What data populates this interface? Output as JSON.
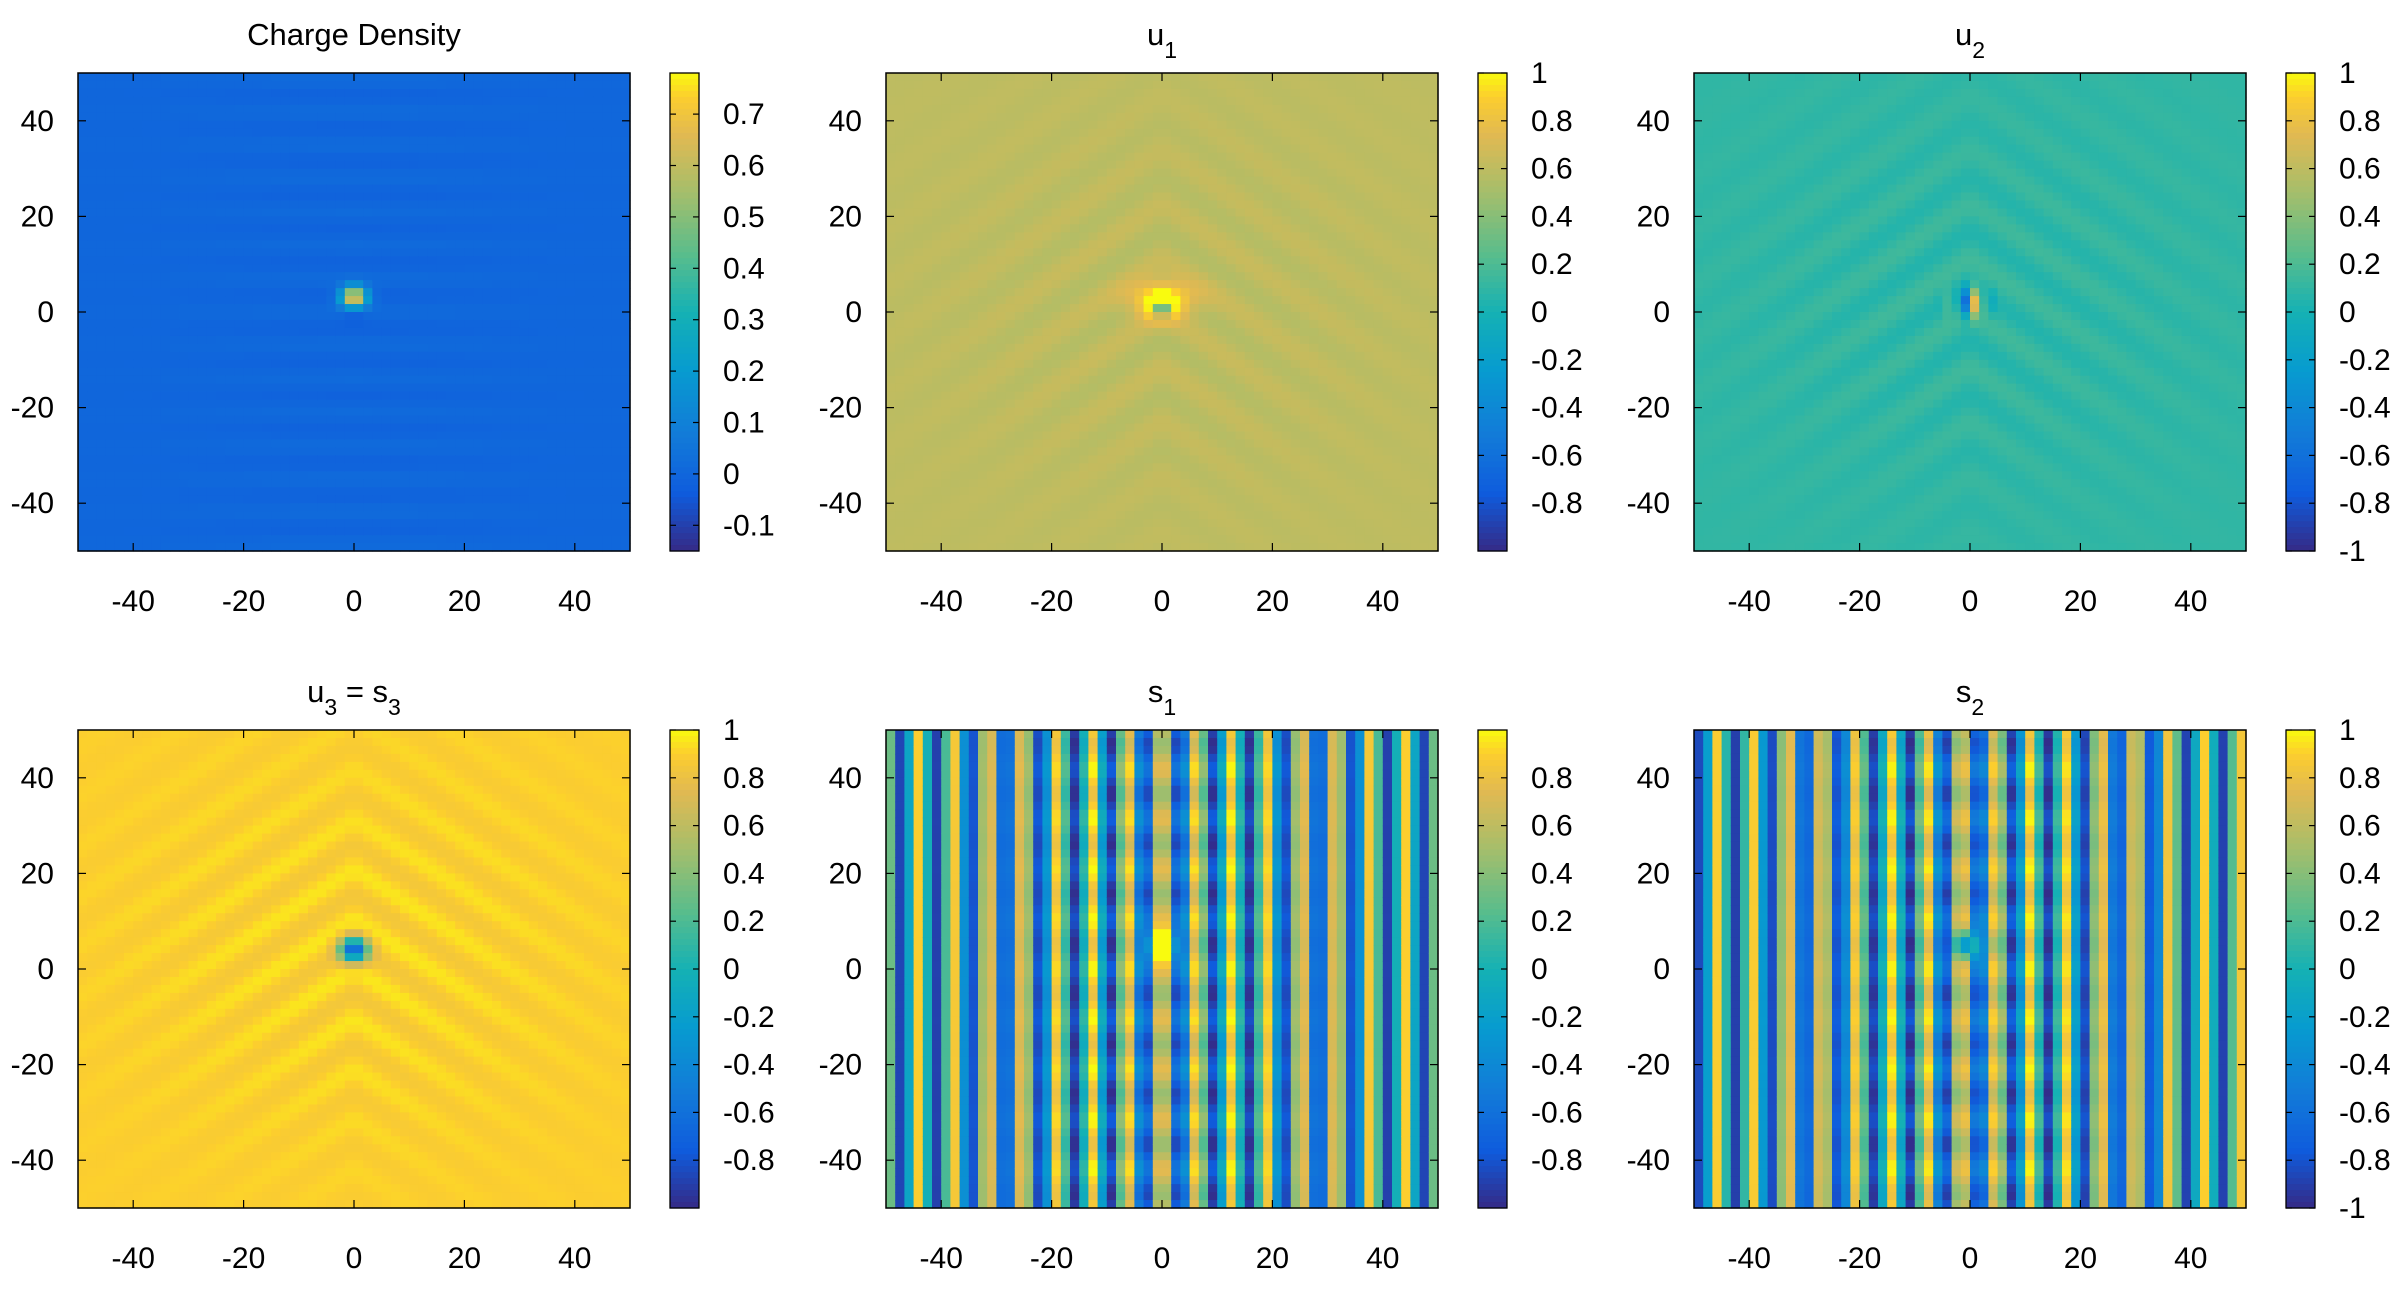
{
  "figure": {
    "panels": [
      {
        "title": "Charge Density",
        "sub": "",
        "suffix": ""
      },
      {
        "title": "u",
        "sub": "1",
        "suffix": ""
      },
      {
        "title": "u",
        "sub": "2",
        "suffix": ""
      },
      {
        "title": "u",
        "sub": "3",
        "suffix": " = s",
        "sub2": "3"
      },
      {
        "title": "s",
        "sub": "1",
        "suffix": ""
      },
      {
        "title": "s",
        "sub": "2",
        "suffix": ""
      }
    ]
  },
  "chart_data": [
    {
      "type": "heatmap",
      "title": "Charge Density",
      "xlim": [
        -50,
        50
      ],
      "ylim": [
        -50,
        50
      ],
      "xticks": [
        -40,
        -20,
        0,
        20,
        40
      ],
      "yticks": [
        -40,
        -20,
        0,
        20,
        40
      ],
      "xticklabels": [
        "-40",
        "-20",
        "0",
        "20",
        "40"
      ],
      "yticklabels": [
        "-40",
        "-20",
        "0",
        "20",
        "40"
      ],
      "colorbar": {
        "min": -0.15,
        "max": 0.78,
        "ticks": [
          -0.1,
          0,
          0.1,
          0.2,
          0.3,
          0.4,
          0.5,
          0.6,
          0.7
        ],
        "ticklabels": [
          "-0.1",
          "0",
          "0.1",
          "0.2",
          "0.3",
          "0.4",
          "0.5",
          "0.6",
          "0.7"
        ]
      },
      "field": {
        "pattern": "charge",
        "background": 0,
        "peak": 0.78,
        "center": [
          0,
          3
        ]
      }
    },
    {
      "type": "heatmap",
      "title": "u1",
      "xlim": [
        -50,
        50
      ],
      "ylim": [
        -50,
        50
      ],
      "xticks": [
        -40,
        -20,
        0,
        20,
        40
      ],
      "yticks": [
        -40,
        -20,
        0,
        20,
        40
      ],
      "xticklabels": [
        "-40",
        "-20",
        "0",
        "20",
        "40"
      ],
      "yticklabels": [
        "-40",
        "-20",
        "0",
        "20",
        "40"
      ],
      "colorbar": {
        "min": -1,
        "max": 1,
        "ticks": [
          -0.8,
          -0.6,
          -0.4,
          -0.2,
          0,
          0.2,
          0.4,
          0.6,
          0.8,
          1
        ],
        "ticklabels": [
          "-0.8",
          "-0.6",
          "-0.4",
          "-0.2",
          "0",
          "0.2",
          "0.4",
          "0.6",
          "0.8",
          "1"
        ]
      },
      "field": {
        "pattern": "u1",
        "background": 0.6,
        "center": [
          0,
          1
        ]
      }
    },
    {
      "type": "heatmap",
      "title": "u2",
      "xlim": [
        -50,
        50
      ],
      "ylim": [
        -50,
        50
      ],
      "xticks": [
        -40,
        -20,
        0,
        20,
        40
      ],
      "yticks": [
        -40,
        -20,
        0,
        20,
        40
      ],
      "xticklabels": [
        "-40",
        "-20",
        "0",
        "20",
        "40"
      ],
      "yticklabels": [
        "-40",
        "-20",
        "0",
        "20",
        "40"
      ],
      "colorbar": {
        "min": -1,
        "max": 1,
        "ticks": [
          -1,
          -0.8,
          -0.6,
          -0.4,
          -0.2,
          0,
          0.2,
          0.4,
          0.6,
          0.8,
          1
        ],
        "ticklabels": [
          "-1",
          "-0.8",
          "-0.6",
          "-0.4",
          "-0.2",
          "0",
          "0.2",
          "0.4",
          "0.6",
          "0.8",
          "1"
        ]
      },
      "field": {
        "pattern": "u2",
        "background": 0.1,
        "center": [
          0,
          2
        ]
      }
    },
    {
      "type": "heatmap",
      "title": "u3 = s3",
      "xlim": [
        -50,
        50
      ],
      "ylim": [
        -50,
        50
      ],
      "xticks": [
        -40,
        -20,
        0,
        20,
        40
      ],
      "yticks": [
        -40,
        -20,
        0,
        20,
        40
      ],
      "xticklabels": [
        "-40",
        "-20",
        "0",
        "20",
        "40"
      ],
      "yticklabels": [
        "-40",
        "-20",
        "0",
        "20",
        "40"
      ],
      "colorbar": {
        "min": -1,
        "max": 1,
        "ticks": [
          -0.8,
          -0.6,
          -0.4,
          -0.2,
          0,
          0.2,
          0.4,
          0.6,
          0.8,
          1
        ],
        "ticklabels": [
          "-0.8",
          "-0.6",
          "-0.4",
          "-0.2",
          "0",
          "0.2",
          "0.4",
          "0.6",
          "0.8",
          "1"
        ]
      },
      "field": {
        "pattern": "u3",
        "background": 0.9,
        "center": [
          0,
          4
        ]
      }
    },
    {
      "type": "heatmap",
      "title": "s1",
      "xlim": [
        -50,
        50
      ],
      "ylim": [
        -50,
        50
      ],
      "xticks": [
        -40,
        -20,
        0,
        20,
        40
      ],
      "yticks": [
        -40,
        -20,
        0,
        20,
        40
      ],
      "xticklabels": [
        "-40",
        "-20",
        "0",
        "20",
        "40"
      ],
      "yticklabels": [
        "-40",
        "-20",
        "0",
        "20",
        "40"
      ],
      "colorbar": {
        "min": -1,
        "max": 1,
        "ticks": [
          -0.8,
          -0.6,
          -0.4,
          -0.2,
          0,
          0.2,
          0.4,
          0.6,
          0.8
        ],
        "ticklabels": [
          "-0.8",
          "-0.6",
          "-0.4",
          "-0.2",
          "0",
          "0.2",
          "0.4",
          "0.6",
          "0.8"
        ]
      },
      "field": {
        "pattern": "s1",
        "stripe_period": 6.3,
        "center": [
          0,
          5
        ]
      }
    },
    {
      "type": "heatmap",
      "title": "s2",
      "xlim": [
        -50,
        50
      ],
      "ylim": [
        -50,
        50
      ],
      "xticks": [
        -40,
        -20,
        0,
        20,
        40
      ],
      "yticks": [
        -40,
        -20,
        0,
        20,
        40
      ],
      "xticklabels": [
        "-40",
        "-20",
        "0",
        "20",
        "40"
      ],
      "yticklabels": [
        "-40",
        "-20",
        "0",
        "20",
        "40"
      ],
      "colorbar": {
        "min": -1,
        "max": 1,
        "ticks": [
          -1,
          -0.8,
          -0.6,
          -0.4,
          -0.2,
          0,
          0.2,
          0.4,
          0.6,
          0.8,
          1
        ],
        "ticklabels": [
          "-1",
          "-0.8",
          "-0.6",
          "-0.4",
          "-0.2",
          "0",
          "0.2",
          "0.4",
          "0.6",
          "0.8",
          "1"
        ]
      },
      "field": {
        "pattern": "s2",
        "stripe_period": 6.3,
        "center": [
          0,
          5
        ]
      }
    }
  ]
}
